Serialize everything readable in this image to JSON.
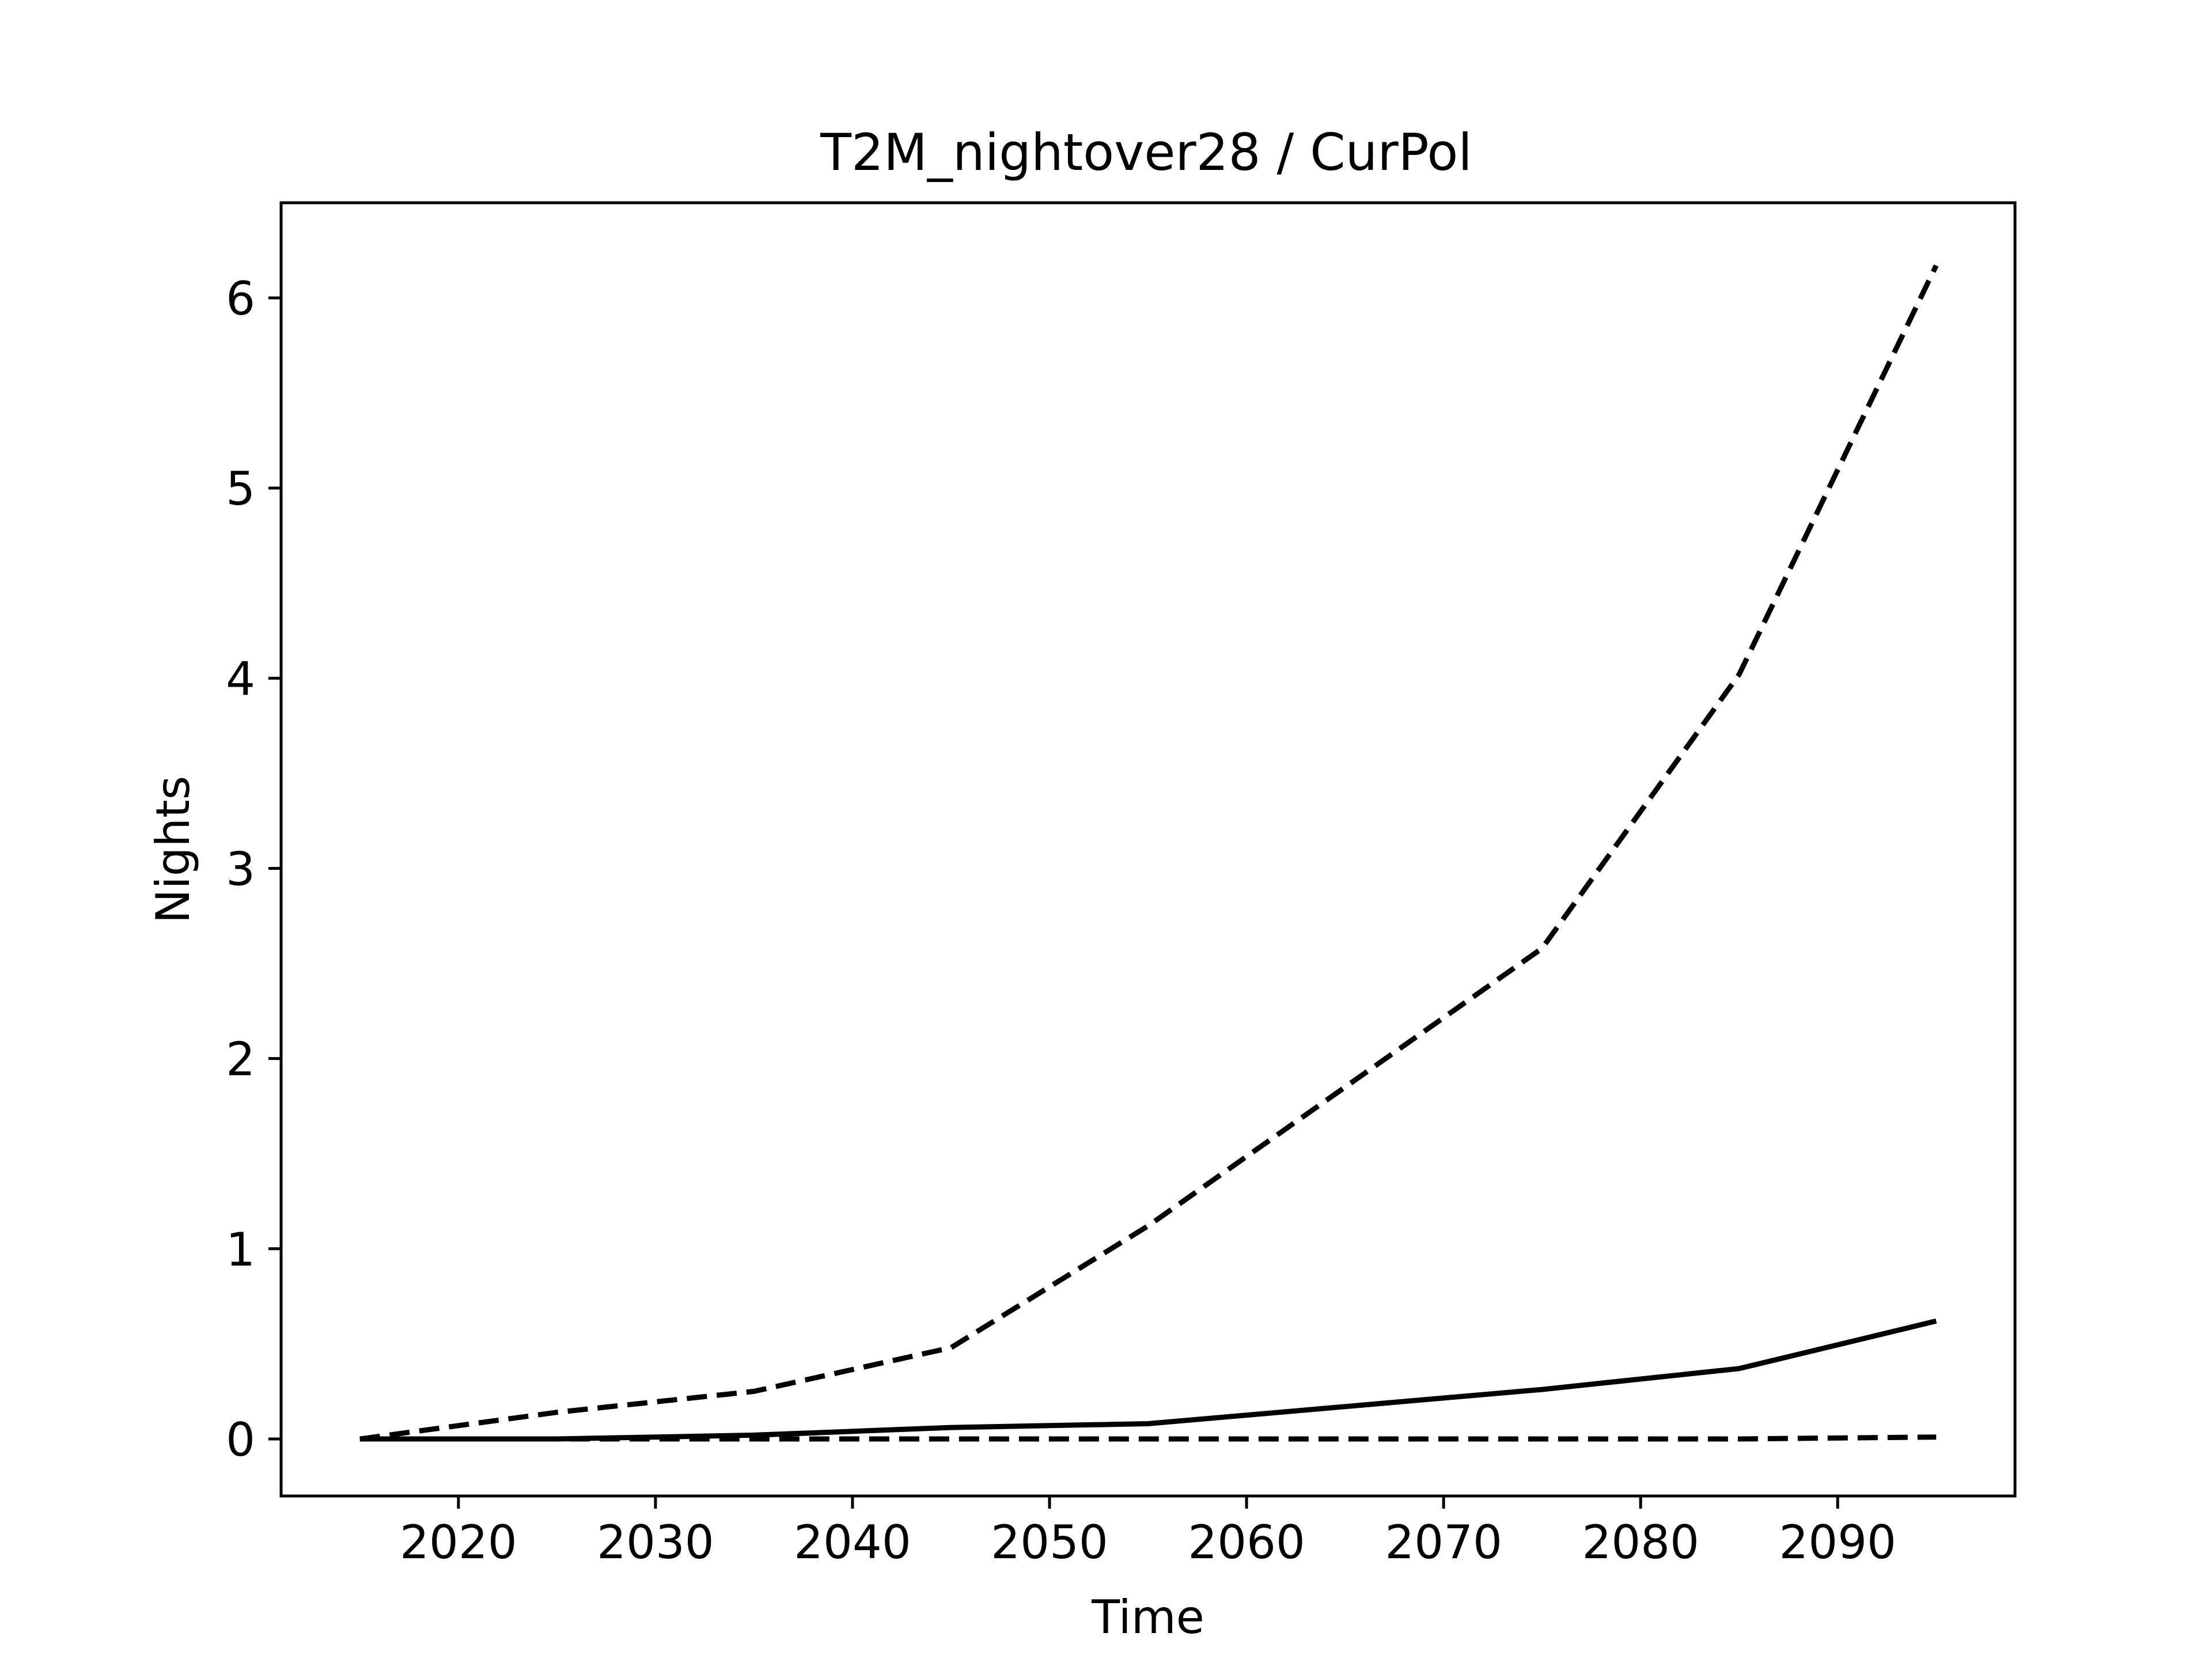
{
  "chart_data": {
    "type": "line",
    "title": "T2M_nightover28 / CurPol",
    "xlabel": "Time",
    "ylabel": "Nights",
    "xlim": [
      2011,
      2099
    ],
    "ylim": [
      -0.3,
      6.5
    ],
    "xticks": [
      2020,
      2030,
      2040,
      2050,
      2060,
      2070,
      2080,
      2090
    ],
    "yticks": [
      0,
      1,
      2,
      3,
      4,
      5,
      6
    ],
    "grid": false,
    "legend": "none",
    "x": [
      2015,
      2025,
      2035,
      2045,
      2055,
      2065,
      2075,
      2085,
      2095
    ],
    "series": [
      {
        "style": "dashed",
        "color": "#000000",
        "values": [
          0.0,
          0.14,
          0.25,
          0.48,
          1.12,
          1.85,
          2.58,
          4.02,
          6.17
        ]
      },
      {
        "style": "solid",
        "color": "#000000",
        "values": [
          0.0,
          0.0,
          0.02,
          0.06,
          0.08,
          0.17,
          0.26,
          0.37,
          0.62
        ]
      },
      {
        "style": "dashed",
        "color": "#000000",
        "values": [
          0.0,
          0.0,
          0.0,
          0.0,
          0.0,
          0.0,
          0.0,
          0.0,
          0.01
        ]
      }
    ]
  }
}
